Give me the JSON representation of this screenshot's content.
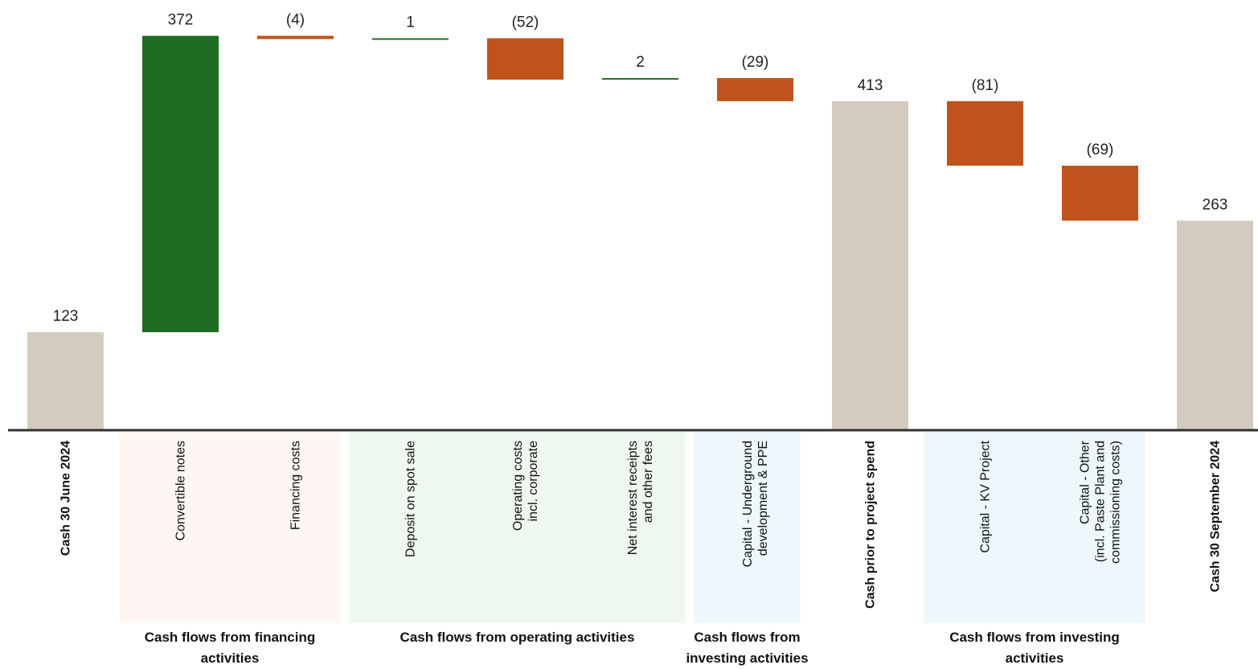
{
  "chart_data": {
    "type": "waterfall",
    "categories": [
      "Cash 30 June 2024",
      "Convertible notes",
      "Financing costs",
      "Deposit on spot sale",
      "Operating costs\nincl. corporate",
      "Net interest receipts\nand other fees",
      "Capital - Underground\ndevelopment & PPE",
      "Cash prior to project spend",
      "Capital - KV Project",
      "Capital - Other\n(incl. Paste Plant and\ncommissioning costs)",
      "Cash 30 September 2024"
    ],
    "values": [
      123,
      372,
      -4,
      1,
      -52,
      2,
      -29,
      413,
      -81,
      -69,
      263
    ],
    "value_labels": [
      "123",
      "372",
      "(4)",
      "1",
      "(52)",
      "2",
      "(29)",
      "413",
      "(81)",
      "(69)",
      "263"
    ],
    "measure": [
      "absolute",
      "relative",
      "relative",
      "relative",
      "relative",
      "relative",
      "relative",
      "absolute",
      "relative",
      "relative",
      "absolute"
    ],
    "colors": {
      "total": "#d3cbbd",
      "increase": "#1e6b23",
      "decrease": "#c0531b"
    },
    "ylim": [
      0,
      540
    ],
    "groups": [
      {
        "label": "Cash flows from financing activities",
        "start": 1,
        "end": 2,
        "color": "#fdf6f2"
      },
      {
        "label": "Cash flows from operating activities",
        "start": 3,
        "end": 5,
        "color": "#eef8ee"
      },
      {
        "label": "Cash flows from investing activities",
        "start": 6,
        "end": 6,
        "color": "#eef7fb"
      },
      {
        "label": "Cash flows from investing activities",
        "start": 8,
        "end": 9,
        "color": "#eef7fb"
      }
    ]
  }
}
